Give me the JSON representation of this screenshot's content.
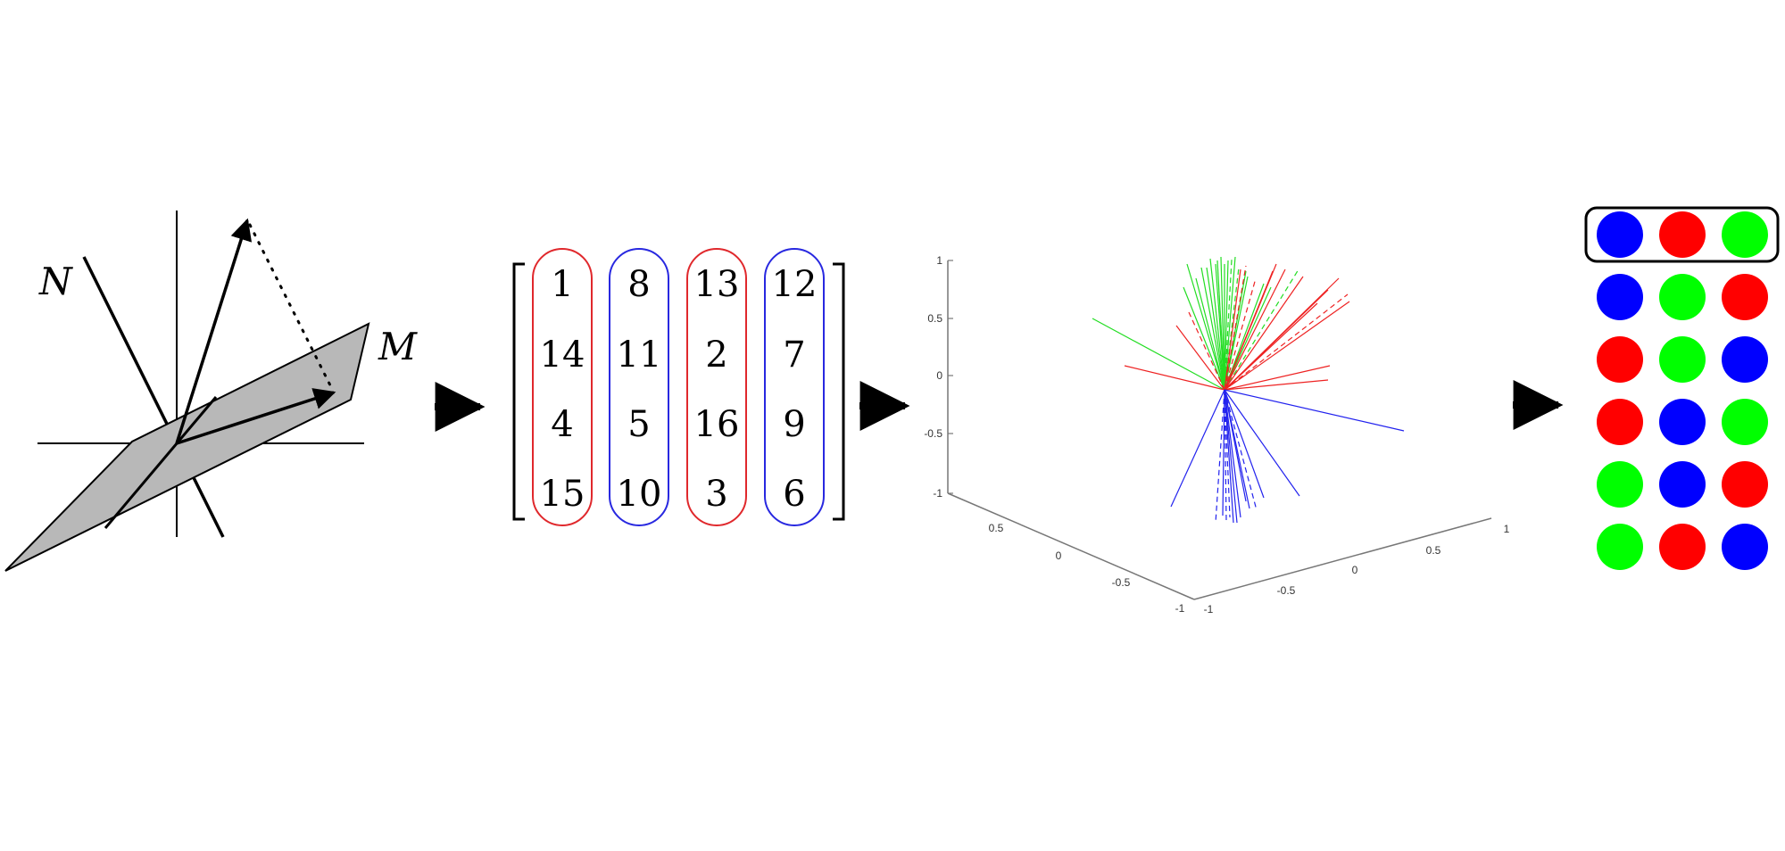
{
  "projection_panel": {
    "label_n": "N",
    "label_m": "M"
  },
  "matrix_panel": {
    "columns": [
      {
        "values": [
          "1",
          "14",
          "4",
          "15"
        ],
        "color": "#e0282c"
      },
      {
        "values": [
          "8",
          "11",
          "5",
          "10"
        ],
        "color": "#2828e0"
      },
      {
        "values": [
          "13",
          "2",
          "16",
          "3"
        ],
        "color": "#e0282c"
      },
      {
        "values": [
          "12",
          "7",
          "9",
          "6"
        ],
        "color": "#2828e0"
      }
    ]
  },
  "plot_panel": {
    "z_ticks": [
      "1",
      "0.5",
      "0",
      "-0.5",
      "-1"
    ],
    "x_ticks": [
      "0.5",
      "0",
      "-0.5",
      "-1"
    ],
    "y_ticks": [
      "-1",
      "-0.5",
      "0",
      "0.5",
      "1"
    ],
    "colors": {
      "green": "#22dd22",
      "red": "#ee2222",
      "blue": "#2222ee"
    }
  },
  "grid_panel": {
    "colors": {
      "blue": "#0000ff",
      "red": "#ff0000",
      "green": "#00ff00"
    },
    "rows": [
      [
        "blue",
        "red",
        "green"
      ],
      [
        "blue",
        "green",
        "red"
      ],
      [
        "red",
        "green",
        "blue"
      ],
      [
        "red",
        "blue",
        "green"
      ],
      [
        "green",
        "blue",
        "red"
      ],
      [
        "green",
        "red",
        "blue"
      ]
    ],
    "highlighted_row": 0
  }
}
